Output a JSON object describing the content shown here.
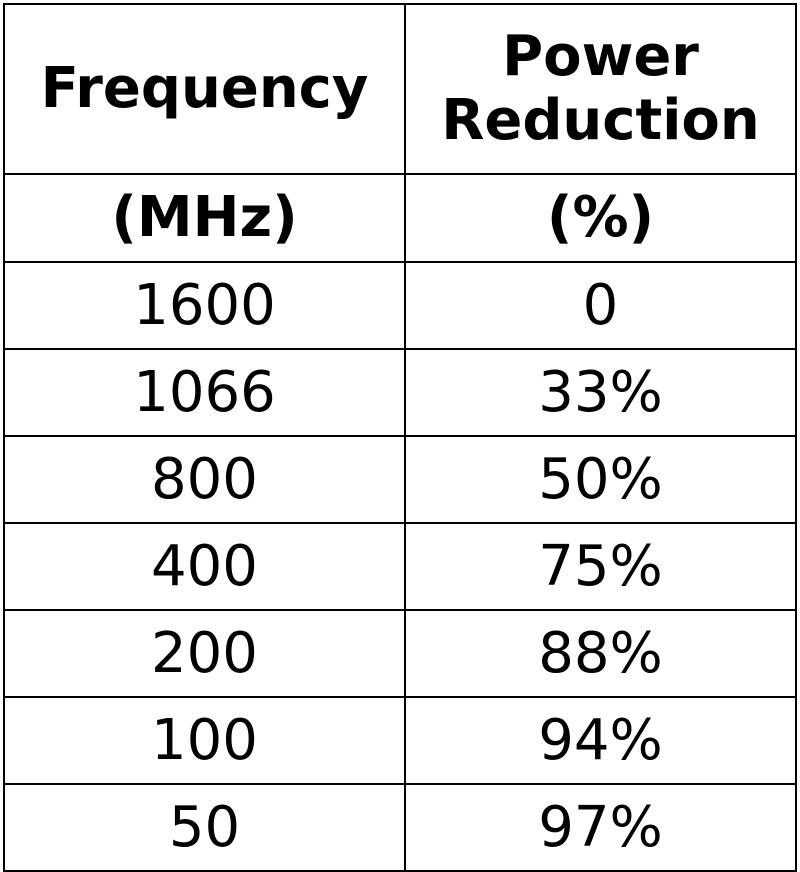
{
  "table": {
    "headers": [
      {
        "lines": [
          "Frequency"
        ],
        "unit": "(MHz)"
      },
      {
        "lines": [
          "Power",
          "Reduction"
        ],
        "unit": "(%)"
      }
    ],
    "rows": [
      {
        "frequency": "1600",
        "reduction": "0"
      },
      {
        "frequency": "1066",
        "reduction": "33%"
      },
      {
        "frequency": "800",
        "reduction": "50%"
      },
      {
        "frequency": "400",
        "reduction": "75%"
      },
      {
        "frequency": "200",
        "reduction": "88%"
      },
      {
        "frequency": "100",
        "reduction": "94%"
      },
      {
        "frequency": "50",
        "reduction": "97%"
      }
    ]
  }
}
